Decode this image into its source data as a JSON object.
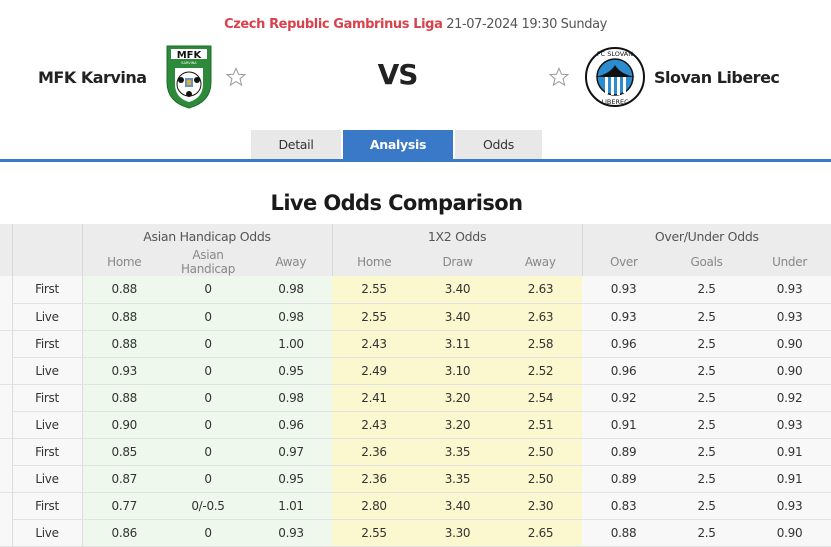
{
  "match": {
    "league": "Czech Republic Gambrinus Liga",
    "datetime": "21-07-2024 19:30 Sunday",
    "home_team": "MFK Karvina",
    "away_team": "Slovan Liberec",
    "vs_label": "VS",
    "home_logo_icon": "mfk-karvina-crest",
    "away_logo_icon": "fc-slovan-liberec-crest",
    "favorite_icon": "star-outline-icon"
  },
  "tabs": [
    {
      "label": "Detail",
      "active": false
    },
    {
      "label": "Analysis",
      "active": true
    },
    {
      "label": "Odds",
      "active": false
    }
  ],
  "colors": {
    "accent": "#3a79c8",
    "league": "#d9414b",
    "asian_bg": "#eef8ec",
    "x12_bg": "#fbf8cf"
  },
  "section_title": "Live Odds Comparison",
  "table": {
    "groups": [
      "Asian Handicap Odds",
      "1X2 Odds",
      "Over/Under Odds"
    ],
    "columns": {
      "asian": [
        "Home",
        "Asian Handicap",
        "Away"
      ],
      "x12": [
        "Home",
        "Draw",
        "Away"
      ],
      "ou": [
        "Over",
        "Goals",
        "Under"
      ]
    },
    "rows": [
      {
        "type": "First",
        "ah_home": "0.88",
        "ah_line": "0",
        "ah_away": "0.98",
        "h": "2.55",
        "d": "3.40",
        "a": "2.63",
        "over": "0.93",
        "goals": "2.5",
        "under": "0.93"
      },
      {
        "type": "Live",
        "ah_home": "0.88",
        "ah_line": "0",
        "ah_away": "0.98",
        "h": "2.55",
        "d": "3.40",
        "a": "2.63",
        "over": "0.93",
        "goals": "2.5",
        "under": "0.93"
      },
      {
        "type": "First",
        "ah_home": "0.88",
        "ah_line": "0",
        "ah_away": "1.00",
        "h": "2.43",
        "d": "3.11",
        "a": "2.58",
        "over": "0.96",
        "goals": "2.5",
        "under": "0.90"
      },
      {
        "type": "Live",
        "ah_home": "0.93",
        "ah_line": "0",
        "ah_away": "0.95",
        "h": "2.49",
        "d": "3.10",
        "a": "2.52",
        "over": "0.96",
        "goals": "2.5",
        "under": "0.90"
      },
      {
        "type": "First",
        "ah_home": "0.88",
        "ah_line": "0",
        "ah_away": "0.98",
        "h": "2.41",
        "d": "3.20",
        "a": "2.54",
        "over": "0.92",
        "goals": "2.5",
        "under": "0.92"
      },
      {
        "type": "Live",
        "ah_home": "0.90",
        "ah_line": "0",
        "ah_away": "0.96",
        "h": "2.43",
        "d": "3.20",
        "a": "2.51",
        "over": "0.91",
        "goals": "2.5",
        "under": "0.93"
      },
      {
        "type": "First",
        "ah_home": "0.85",
        "ah_line": "0",
        "ah_away": "0.97",
        "h": "2.36",
        "d": "3.35",
        "a": "2.50",
        "over": "0.89",
        "goals": "2.5",
        "under": "0.91"
      },
      {
        "type": "Live",
        "ah_home": "0.87",
        "ah_line": "0",
        "ah_away": "0.95",
        "h": "2.36",
        "d": "3.35",
        "a": "2.50",
        "over": "0.89",
        "goals": "2.5",
        "under": "0.91"
      },
      {
        "type": "First",
        "ah_home": "0.77",
        "ah_line": "0/-0.5",
        "ah_away": "1.01",
        "h": "2.80",
        "d": "3.40",
        "a": "2.30",
        "over": "0.83",
        "goals": "2.5",
        "under": "0.93"
      },
      {
        "type": "Live",
        "ah_home": "0.86",
        "ah_line": "0",
        "ah_away": "0.93",
        "h": "2.55",
        "d": "3.30",
        "a": "2.65",
        "over": "0.88",
        "goals": "2.5",
        "under": "0.90"
      }
    ]
  }
}
